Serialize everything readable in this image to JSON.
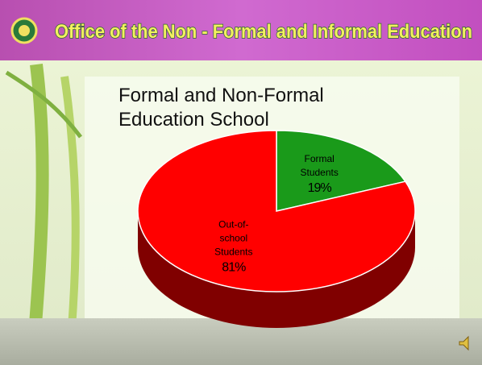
{
  "header": {
    "title": "Office of the Non - Formal and Informal Education"
  },
  "chart_data": {
    "type": "pie",
    "title": "Formal and Non-Formal Education School",
    "categories": [
      "Formal Students",
      "Out-of-school Students"
    ],
    "values": [
      19,
      81
    ],
    "value_labels": [
      "19%",
      "81%"
    ],
    "colors": [
      "#1a9a1a",
      "#ff0000"
    ]
  }
}
